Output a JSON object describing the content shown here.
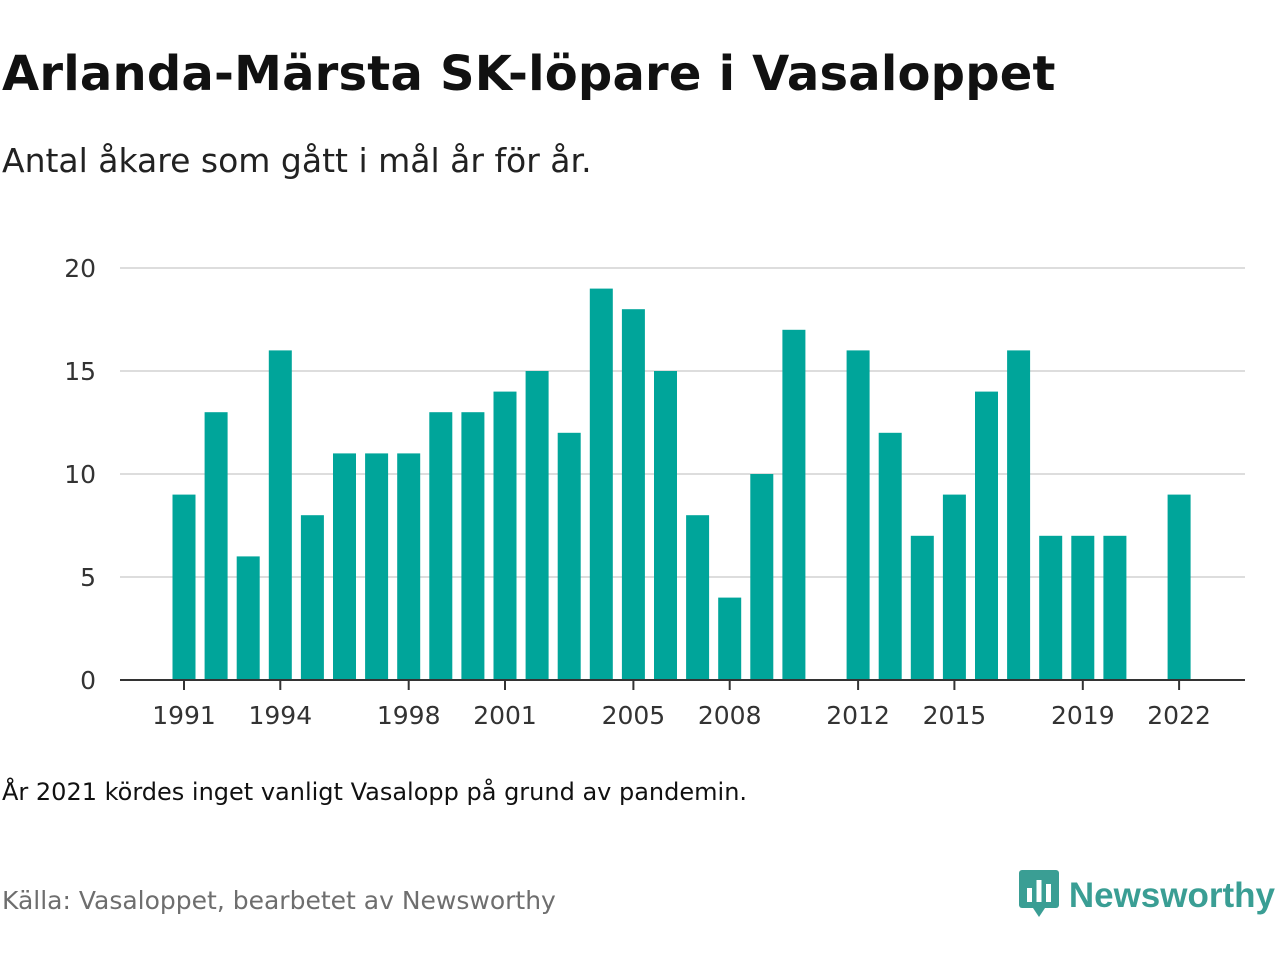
{
  "title": "Arlanda-Märsta SK-löpare i Vasaloppet",
  "subtitle": "Antal åkare som gått i mål år för år.",
  "note": "År 2021 kördes inget vanligt Vasalopp på grund av pandemin.",
  "source": "Källa: Vasaloppet, bearbetet av Newsworthy",
  "brand": {
    "name": "Newsworthy",
    "icon": "newsworthy-logo-icon",
    "color": "#3a9e94"
  },
  "colors": {
    "bar": "#00a59a",
    "grid": "#dddddd",
    "axis": "#333333"
  },
  "chart_data": {
    "type": "bar",
    "title": "Arlanda-Märsta SK-löpare i Vasaloppet",
    "subtitle": "Antal åkare som gått i mål år för år.",
    "xlabel": "",
    "ylabel": "",
    "categories": [
      1991,
      1992,
      1993,
      1994,
      1995,
      1996,
      1997,
      1998,
      1999,
      2000,
      2001,
      2002,
      2003,
      2004,
      2005,
      2006,
      2007,
      2008,
      2009,
      2010,
      2011,
      2012,
      2013,
      2014,
      2015,
      2016,
      2017,
      2018,
      2019,
      2020,
      2021,
      2022
    ],
    "values": [
      9,
      13,
      6,
      16,
      8,
      11,
      11,
      11,
      13,
      13,
      14,
      15,
      12,
      19,
      18,
      15,
      8,
      4,
      10,
      17,
      null,
      16,
      12,
      7,
      9,
      14,
      16,
      7,
      7,
      7,
      null,
      9
    ],
    "x_tick_labels": [
      "1991",
      "1994",
      "1998",
      "2001",
      "2005",
      "2008",
      "2012",
      "2015",
      "2019",
      "2022"
    ],
    "y_ticks": [
      0,
      5,
      10,
      15,
      20
    ],
    "ylim": [
      0,
      20
    ],
    "grid": true,
    "legend": "none"
  }
}
